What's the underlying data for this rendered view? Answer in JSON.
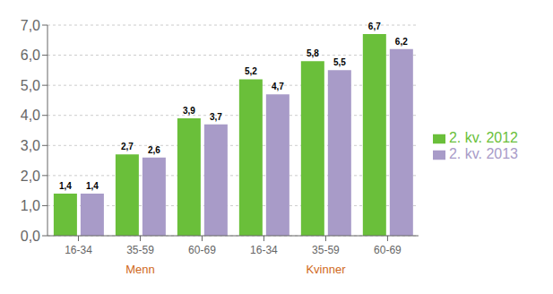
{
  "chart_data": {
    "type": "bar",
    "categories": [
      "16-34",
      "35-59",
      "60-69",
      "16-34",
      "35-59",
      "60-69"
    ],
    "series": [
      {
        "name": "2. kv. 2012",
        "color": "#6abf3a",
        "values": [
          1.4,
          2.7,
          3.9,
          5.2,
          5.8,
          6.7
        ],
        "value_labels": [
          "1,4",
          "2,7",
          "3,9",
          "5,2",
          "5,8",
          "6,7"
        ]
      },
      {
        "name": "2. kv. 2013",
        "color": "#a89bc8",
        "values": [
          1.4,
          2.6,
          3.7,
          4.7,
          5.5,
          6.2
        ],
        "value_labels": [
          "1,4",
          "2,6",
          "3,7",
          "4,7",
          "5,5",
          "6,2"
        ]
      }
    ],
    "ylim": [
      0,
      7.0
    ],
    "yticks": [
      {
        "value": 0.0,
        "label": "0,0"
      },
      {
        "value": 1.0,
        "label": "1,0"
      },
      {
        "value": 2.0,
        "label": "2,0"
      },
      {
        "value": 3.0,
        "label": "3,0"
      },
      {
        "value": 4.0,
        "label": "4,0"
      },
      {
        "value": 5.0,
        "label": "5,0"
      },
      {
        "value": 6.0,
        "label": "6,0"
      },
      {
        "value": 7.0,
        "label": "7,0"
      }
    ],
    "grid": true,
    "legend": "right",
    "data_labels": true,
    "annotations": [
      {
        "text": "Menn",
        "color": "#d06820"
      },
      {
        "text": "Kvinner",
        "color": "#d06820"
      }
    ]
  }
}
